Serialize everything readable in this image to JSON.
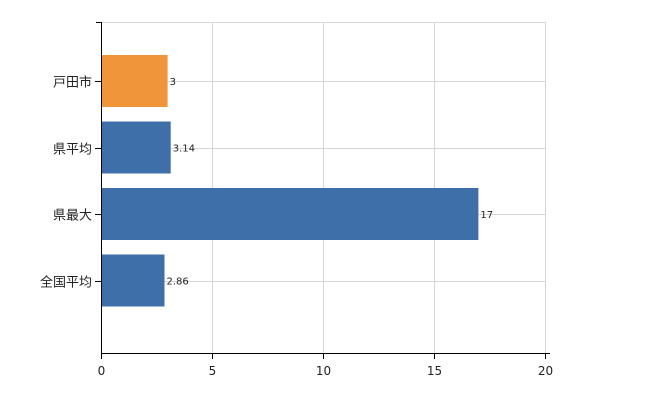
{
  "chart_data": {
    "type": "bar",
    "orientation": "horizontal",
    "categories": [
      "戸田市",
      "県平均",
      "県最大",
      "全国平均"
    ],
    "values": [
      3,
      3.14,
      17,
      2.86
    ],
    "value_labels": [
      "3",
      "3.14",
      "17",
      "2.86"
    ],
    "bar_colors": [
      "#f0953a",
      "#3f6fa8",
      "#3f6fa8",
      "#3f6fa8"
    ],
    "xlim": [
      0,
      20
    ],
    "xticks": [
      0,
      5,
      10,
      15,
      20
    ],
    "xtick_labels": [
      "0",
      "5",
      "10",
      "15",
      "20"
    ],
    "grid": true,
    "title": "",
    "xlabel": "",
    "ylabel": ""
  }
}
